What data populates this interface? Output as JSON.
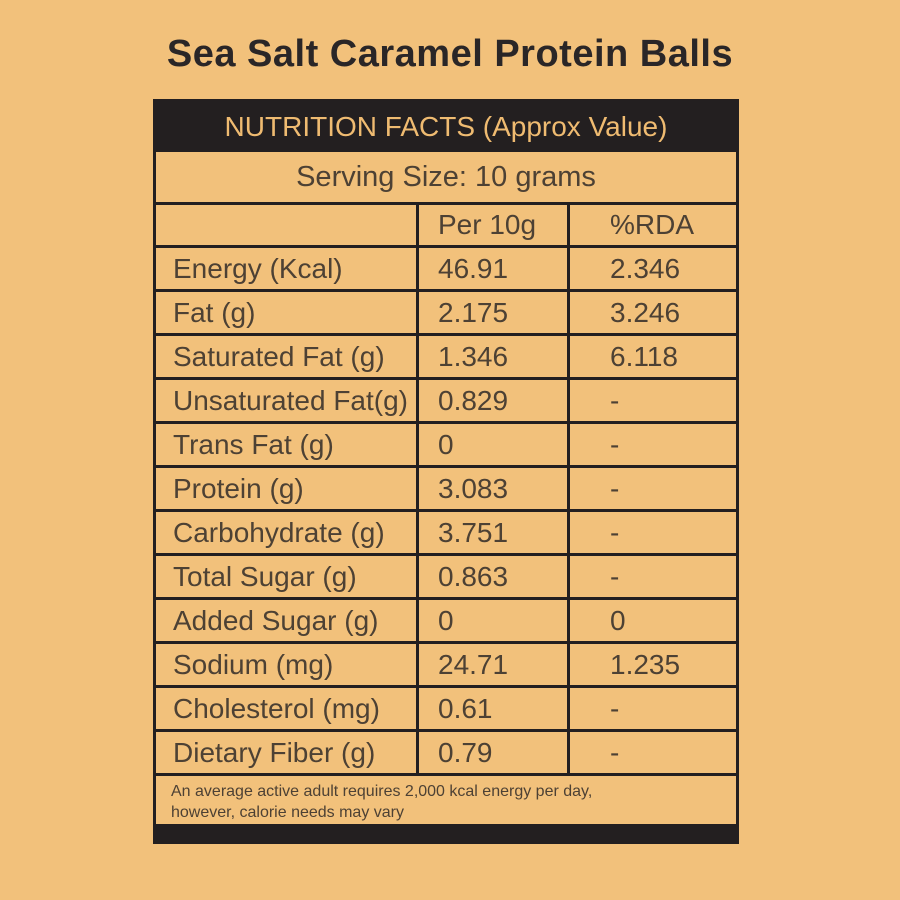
{
  "page_title": "Sea Salt Caramel Protein Balls",
  "table": {
    "header_title": "NUTRITION FACTS (Approx Value)",
    "serving_line": "Serving Size: 10 grams",
    "columns": {
      "label": "",
      "per": "Per 10g",
      "rda": "%RDA"
    },
    "rows": [
      {
        "label": "Energy (Kcal)",
        "per": "46.91",
        "rda": "2.346"
      },
      {
        "label": "Fat (g)",
        "per": "2.175",
        "rda": "3.246"
      },
      {
        "label": "Saturated Fat (g)",
        "per": "1.346",
        "rda": "6.118"
      },
      {
        "label": "Unsaturated Fat(g)",
        "per": "0.829",
        "rda": "-"
      },
      {
        "label": "Trans Fat (g)",
        "per": "0",
        "rda": "-"
      },
      {
        "label": "Protein (g)",
        "per": "3.083",
        "rda": "-"
      },
      {
        "label": "Carbohydrate (g)",
        "per": "3.751",
        "rda": "-"
      },
      {
        "label": "Total Sugar (g)",
        "per": "0.863",
        "rda": "-"
      },
      {
        "label": "Added Sugar (g)",
        "per": "0",
        "rda": "0"
      },
      {
        "label": "Sodium (mg)",
        "per": "24.71",
        "rda": "1.235"
      },
      {
        "label": "Cholesterol (mg)",
        "per": "0.61",
        "rda": "-"
      },
      {
        "label": "Dietary Fiber (g)",
        "per": "0.79",
        "rda": "-"
      }
    ],
    "footnote_line1": "An average active adult requires 2,000 kcal energy per day,",
    "footnote_line2": "however, calorie needs may vary"
  },
  "colors": {
    "background": "#f2c17b",
    "panel_black": "#231f20",
    "header_text": "#efbb71",
    "body_text": "#4d4134",
    "title_text": "#2a2627"
  }
}
